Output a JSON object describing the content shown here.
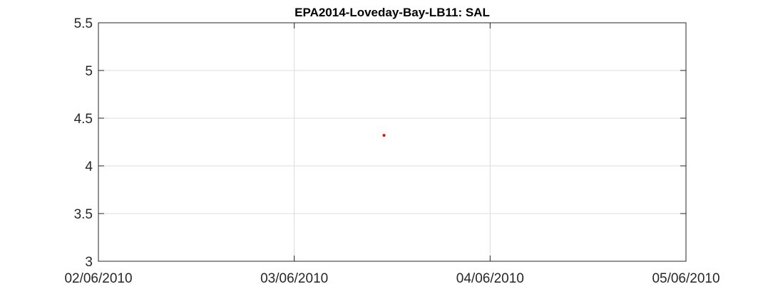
{
  "chart_data": {
    "type": "scatter",
    "title": "EPA2014-Loveday-Bay-LB11: SAL",
    "xlabel": "",
    "ylabel": "",
    "x_ticks": [
      "02/06/2010",
      "03/06/2010",
      "04/06/2010",
      "05/06/2010"
    ],
    "y_ticks": [
      "3",
      "3.5",
      "4",
      "4.5",
      "5",
      "5.5"
    ],
    "xlim": [
      "2010-06-02",
      "2010-06-05"
    ],
    "ylim": [
      3,
      5.5
    ],
    "grid": true,
    "series": [
      {
        "color": "#ff0000",
        "points": [
          {
            "x": "2010-06-03 11:00",
            "y": 4.32
          }
        ]
      }
    ]
  }
}
